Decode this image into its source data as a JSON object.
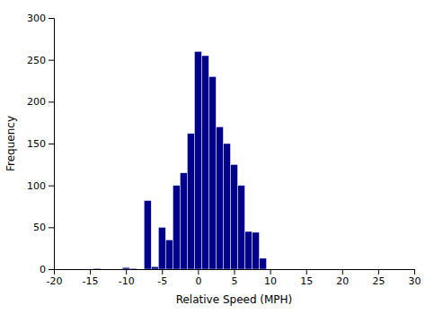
{
  "chart_data": {
    "type": "bar",
    "xlabel": "Relative Speed (MPH)",
    "ylabel": "Frequency",
    "x": [
      -14,
      -13,
      -12,
      -11,
      -10,
      -9,
      -8,
      -7,
      -6,
      -5,
      -4,
      -3,
      -2,
      -1,
      0,
      1,
      2,
      3,
      4,
      5,
      6,
      7,
      8,
      9
    ],
    "values": [
      1,
      0,
      0,
      0,
      2,
      1,
      0,
      82,
      3,
      50,
      35,
      100,
      115,
      162,
      260,
      255,
      230,
      170,
      150,
      125,
      100,
      45,
      44,
      13
    ],
    "color": "#00008B",
    "xlim": [
      -20,
      30
    ],
    "ylim": [
      0,
      300
    ],
    "xticks": [
      -20,
      -15,
      -10,
      -5,
      0,
      5,
      10,
      15,
      20,
      25,
      30
    ],
    "yticks": [
      0,
      50,
      100,
      150,
      200,
      250,
      300
    ],
    "grid": false
  }
}
